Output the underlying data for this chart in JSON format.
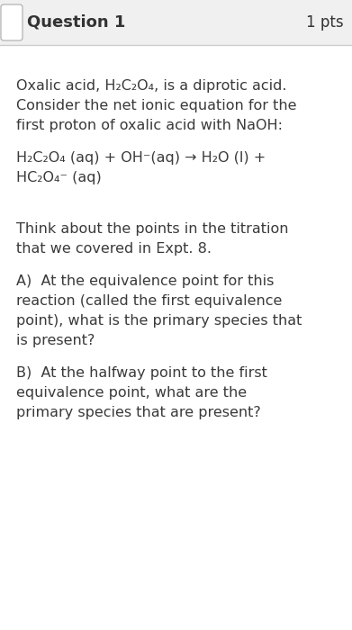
{
  "bg_color": "#ffffff",
  "header_bg": "#f0f0f0",
  "header_line_color": "#cccccc",
  "title_text": "Question 1",
  "pts_text": "1 pts",
  "title_fontsize": 13,
  "pts_fontsize": 12,
  "body_fontsize": 11.5,
  "text_color": "#3a3a3a",
  "header_text_color": "#333333",
  "line1": "Oxalic acid, H₂C₂O₄, is a diprotic acid.",
  "line2": "Consider the net ionic equation for the",
  "line3": "first proton of oxalic acid with NaOH:",
  "eq_line1": "H₂C₂O₄ (aq) + OH⁻(aq) → H₂O (l) +",
  "eq_line2": "HC₂O₄⁻ (aq)",
  "think_line1": "Think about the points in the titration",
  "think_line2": "that we covered in Expt. 8.",
  "a_line1": "A)  At the equivalence point for this",
  "a_line2": "reaction (called the first equivalence",
  "a_line3": "point), what is the primary species that",
  "a_line4": "is present?",
  "b_line1": "B)  At the halfway point to the first",
  "b_line2": "equivalence point, what are the",
  "b_line3": "primary species that are present?"
}
